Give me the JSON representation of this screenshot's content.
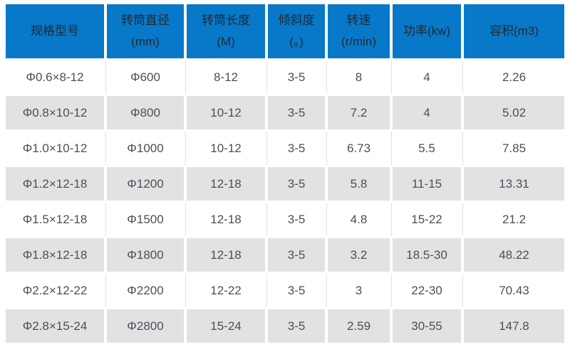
{
  "chart_data": {
    "type": "table",
    "columns": [
      {
        "line1": "规格型号",
        "line2": ""
      },
      {
        "line1": "转筒直径",
        "line2": "(mm)"
      },
      {
        "line1": "转筒长度",
        "line2": "(M)"
      },
      {
        "line1": "倾斜度",
        "line2": "(。)"
      },
      {
        "line1": "转速",
        "line2": "(r/min)"
      },
      {
        "line1": "功率(kw)",
        "line2": ""
      },
      {
        "line1": "容积(m3)",
        "line2": ""
      }
    ],
    "rows": [
      {
        "cells": [
          "Φ0.6×8-12",
          "Φ600",
          "8-12",
          "3-5",
          "8",
          "4",
          "2.26"
        ]
      },
      {
        "cells": [
          "Φ0.8×10-12",
          "Φ800",
          "10-12",
          "3-5",
          "7.2",
          "4",
          "5.02"
        ]
      },
      {
        "cells": [
          "Φ1.0×10-12",
          "Φ1000",
          "10-12",
          "3-5",
          "6.73",
          "5.5",
          "7.85"
        ]
      },
      {
        "cells": [
          "Φ1.2×12-18",
          "Φ1200",
          "12-18",
          "3-5",
          "5.8",
          "11-15",
          "13.31"
        ]
      },
      {
        "cells": [
          "Φ1.5×12-18",
          "Φ1500",
          "12-18",
          "3-5",
          "4.8",
          "15-22",
          "21.2"
        ]
      },
      {
        "cells": [
          "Φ1.8×12-18",
          "Φ1800",
          "12-18",
          "3-5",
          "3.2",
          "18.5-30",
          "48.22"
        ]
      },
      {
        "cells": [
          "Φ2.2×12-22",
          "Φ2200",
          "12-22",
          "3-5",
          "3",
          "22-30",
          "70.43"
        ]
      },
      {
        "cells": [
          "Φ2.8×15-24",
          "Φ2800",
          "15-24",
          "3-5",
          "2.59",
          "30-55",
          "147.8"
        ]
      }
    ]
  },
  "colors": {
    "header_bg": "#0878c8",
    "header_text": "#1e2a32",
    "row_bg": "#ffffff",
    "row_alt_bg": "#e2e2e2",
    "body_text": "#49505a",
    "grid_gap": "#ffffff"
  }
}
